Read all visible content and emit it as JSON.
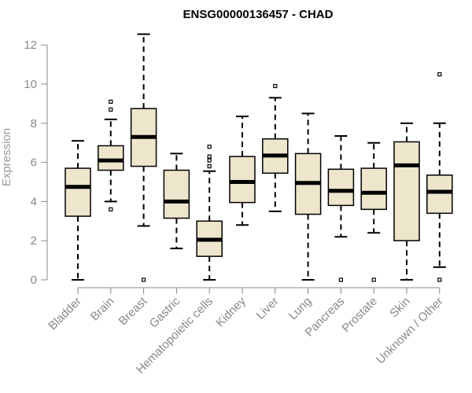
{
  "chart_data": {
    "type": "boxplot",
    "title": "ENSG00000136457 - CHAD",
    "xlabel": "",
    "ylabel": "Expression",
    "ylim": [
      0,
      12.6
    ],
    "yticks": [
      0,
      2,
      4,
      6,
      8,
      10,
      12
    ],
    "box_fill": "#ede5cc",
    "categories": [
      "Bladder",
      "Brain",
      "Breast",
      "Gastric",
      "Hematopoietic cells",
      "Kidney",
      "Liver",
      "Lung",
      "Pancreas",
      "Prostate",
      "Skin",
      "Unknown / Other"
    ],
    "boxes": [
      {
        "category": "Bladder",
        "whisker_low": 0.0,
        "q1": 3.25,
        "median": 4.75,
        "q3": 5.7,
        "whisker_high": 7.1,
        "outliers": []
      },
      {
        "category": "Brain",
        "whisker_low": 4.0,
        "q1": 5.6,
        "median": 6.1,
        "q3": 6.85,
        "whisker_high": 8.2,
        "outliers": [
          3.6,
          8.7,
          9.1
        ]
      },
      {
        "category": "Breast",
        "whisker_low": 2.75,
        "q1": 5.8,
        "median": 7.3,
        "q3": 8.75,
        "whisker_high": 12.55,
        "outliers": [
          0.0
        ]
      },
      {
        "category": "Gastric",
        "whisker_low": 1.6,
        "q1": 3.15,
        "median": 4.0,
        "q3": 5.6,
        "whisker_high": 6.45,
        "outliers": []
      },
      {
        "category": "Hematopoietic cells",
        "whisker_low": 0.0,
        "q1": 1.2,
        "median": 2.05,
        "q3": 3.0,
        "whisker_high": 5.55,
        "outliers": [
          5.8,
          6.1,
          6.3,
          6.8
        ]
      },
      {
        "category": "Kidney",
        "whisker_low": 2.8,
        "q1": 3.95,
        "median": 5.0,
        "q3": 6.3,
        "whisker_high": 8.35,
        "outliers": []
      },
      {
        "category": "Liver",
        "whisker_low": 3.5,
        "q1": 5.45,
        "median": 6.35,
        "q3": 7.2,
        "whisker_high": 9.3,
        "outliers": [
          9.9
        ]
      },
      {
        "category": "Lung",
        "whisker_low": 0.0,
        "q1": 3.35,
        "median": 4.95,
        "q3": 6.45,
        "whisker_high": 8.5,
        "outliers": []
      },
      {
        "category": "Pancreas",
        "whisker_low": 2.2,
        "q1": 3.8,
        "median": 4.55,
        "q3": 5.65,
        "whisker_high": 7.35,
        "outliers": [
          0.0
        ]
      },
      {
        "category": "Prostate",
        "whisker_low": 2.4,
        "q1": 3.6,
        "median": 4.45,
        "q3": 5.7,
        "whisker_high": 7.0,
        "outliers": [
          0.0
        ]
      },
      {
        "category": "Skin",
        "whisker_low": 0.0,
        "q1": 2.0,
        "median": 5.85,
        "q3": 7.05,
        "whisker_high": 8.0,
        "outliers": []
      },
      {
        "category": "Unknown / Other",
        "whisker_low": 0.65,
        "q1": 3.4,
        "median": 4.5,
        "q3": 5.35,
        "whisker_high": 8.0,
        "outliers": [
          0.0,
          10.5
        ]
      }
    ]
  }
}
